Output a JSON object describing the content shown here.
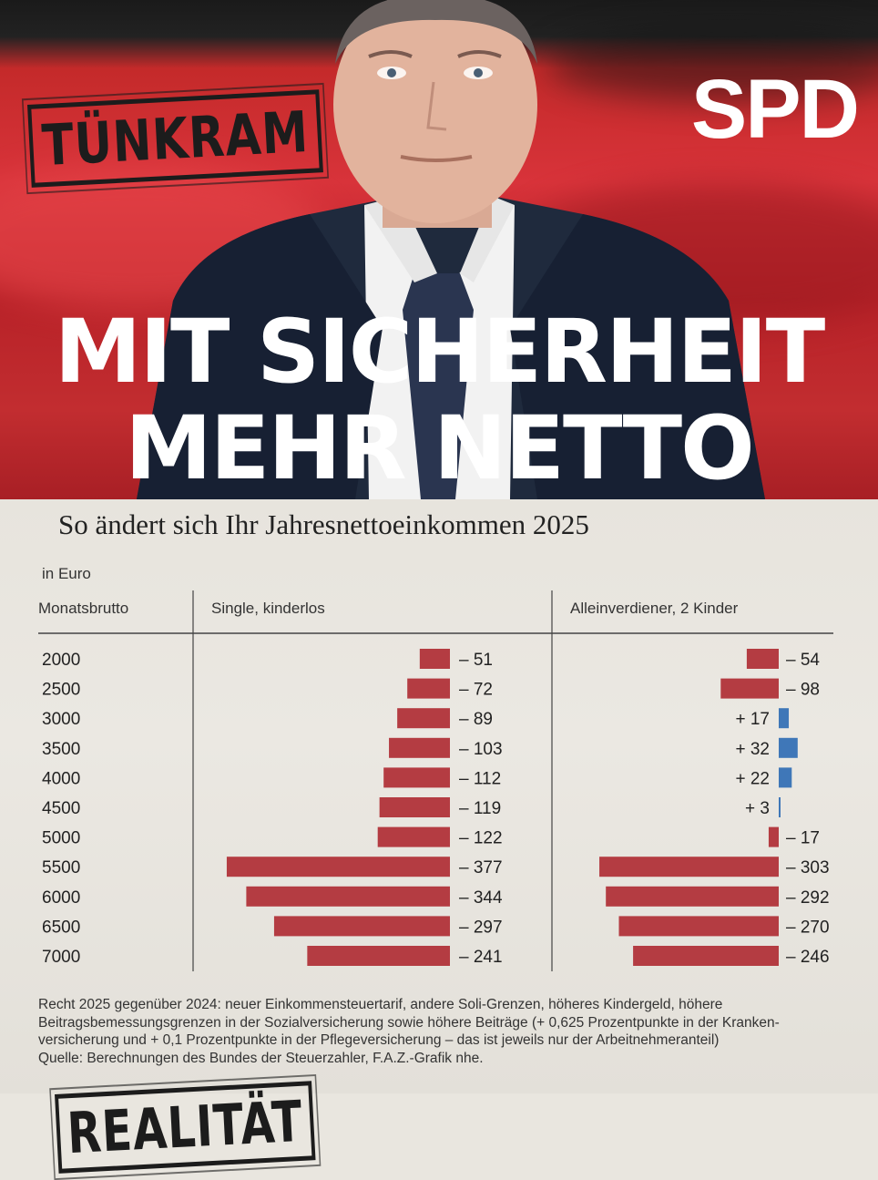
{
  "poster": {
    "party_logo": "SPD",
    "headline_line1": "MIT SICHERHEIT",
    "headline_line2": "MEHR NETTO",
    "stamp_top": "TÜNKRAM",
    "stamp_bottom": "REALITÄT"
  },
  "colors": {
    "flag_red": "#c62b30",
    "bar_negative": "#b43c42",
    "bar_positive": "#3f77b8"
  },
  "chart_data": {
    "type": "bar",
    "orientation": "horizontal",
    "title": "So ändert sich Ihr Jahresnettoeinkommen 2025",
    "unit_label": "in Euro",
    "row_header": "Monatsbrutto",
    "categories": [
      "2000",
      "2500",
      "3000",
      "3500",
      "4000",
      "4500",
      "5000",
      "5500",
      "6000",
      "6500",
      "7000"
    ],
    "series": [
      {
        "name": "Single, kinderlos",
        "values": [
          -51,
          -72,
          -89,
          -103,
          -112,
          -119,
          -122,
          -377,
          -344,
          -297,
          -241
        ]
      },
      {
        "name": "Alleinverdiener, 2 Kinder",
        "values": [
          -54,
          -98,
          17,
          32,
          22,
          3,
          -17,
          -303,
          -292,
          -270,
          -246
        ]
      }
    ]
  },
  "notes": {
    "line1": "Recht 2025 gegenüber 2024: neuer Einkommensteuertarif, andere Soli-Grenzen, höheres Kindergeld, höhere",
    "line2": "Beitragsbemessungsgrenzen in der Sozialversicherung sowie höhere Beiträge (+ 0,625 Prozentpunkte in der Kranken-",
    "line3": "versicherung und + 0,1 Prozentpunkte in der Pflegeversicherung – das ist jeweils nur der Arbeitnehmeranteil)",
    "source": "Quelle: Berechnungen des Bundes der Steuerzahler, F.A.Z.-Grafik nhe."
  }
}
